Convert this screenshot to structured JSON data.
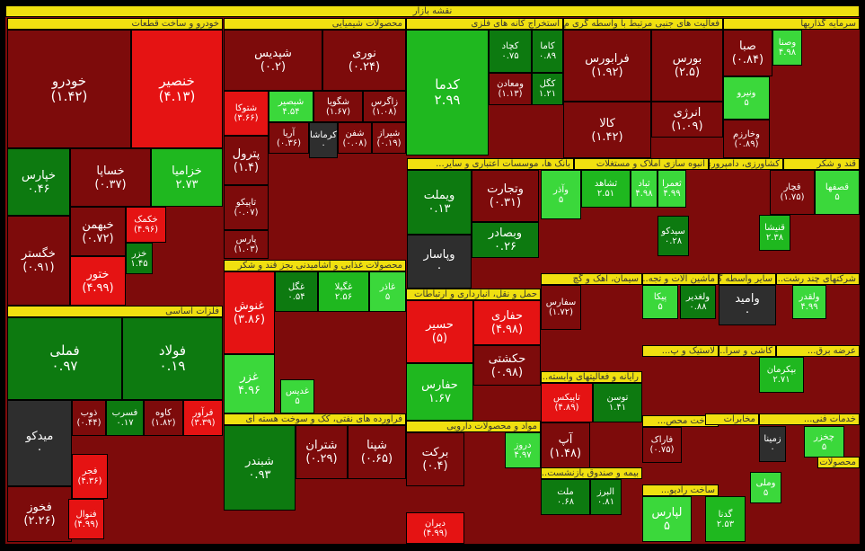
{
  "title": "نقشه بازار",
  "colors": {
    "dark_red": "#7d0b0b",
    "red": "#e51313",
    "dark_green": "#0d7a10",
    "green": "#1fb81f",
    "bright_green": "#3bd83b",
    "gray": "#2e2e2e",
    "header": "#f0e010"
  },
  "chart_data": {
    "type": "treemap",
    "sectors": [
      "خودرو و ساخت قطعات",
      "محصولات شیمیایی",
      "استخراج کانه های فلزی",
      "فعالیت های جنبی مرتبط با واسطه گری م...",
      "سرمایه گذاریها",
      "انبوه سازی املاک و مستغلات",
      "بانک ها، موسسات اعتباری و سایر...",
      "کشاورزی، دامپروری و خ...",
      "قند و شکر",
      "فلزات اساسی",
      "محصولات غذایی و آشامیدنی بجز قند و شکر",
      "حمل و نقل، انبارداری و ارتباطات",
      "سیمان، آهک و گچ",
      "ماشین آلات و تجه...",
      "سایر واسطه گر...",
      "شرکتهای چند رشت...",
      "لاستیک و پ...",
      "کاشی و سرا...",
      "عرضه برق...",
      "رایانه و فعالیتهای وابسته...",
      "فرآورده های نفتی، کک و سوخت هسته ای",
      "مواد و محصولات دارویی",
      "ساخت محص...",
      "مخابرات",
      "خدمات فنی...",
      "محصولات...",
      "بیمه و صندوق بازنشست...",
      "ساخت رادیو..."
    ],
    "tiles": [
      {
        "name": "خودرو",
        "value": "(۱.۴۲)",
        "change": -1.42
      },
      {
        "name": "خنصیر",
        "value": "(۴.۱۳)",
        "change": -4.13
      },
      {
        "name": "خپارس",
        "value": "۰.۴۶",
        "change": 0.46
      },
      {
        "name": "خساپا",
        "value": "(۰.۳۷)",
        "change": -0.37
      },
      {
        "name": "خزامیا",
        "value": "۲.۷۳",
        "change": 2.73
      },
      {
        "name": "خبهمن",
        "value": "(۰.۷۲)",
        "change": -0.72
      },
      {
        "name": "خکمک",
        "value": "(۴.۹۶)",
        "change": -4.96
      },
      {
        "name": "خگستر",
        "value": "(۰.۹۱)",
        "change": -0.91
      },
      {
        "name": "ختور",
        "value": "(۴.۹۹)",
        "change": -4.99
      },
      {
        "name": "خزر",
        "value": "۱.۴۵",
        "change": 1.45
      },
      {
        "name": "شپدیس",
        "value": "(۰.۲)",
        "change": -0.2
      },
      {
        "name": "نوری",
        "value": "(۰.۲۴)",
        "change": -0.24
      },
      {
        "name": "شتوکا",
        "value": "(۳.۶۶)",
        "change": -3.66
      },
      {
        "name": "شبصیر",
        "value": "۴.۵۴",
        "change": 4.54
      },
      {
        "name": "شگویا",
        "value": "(۱.۶۷)",
        "change": -1.67
      },
      {
        "name": "زاگرس",
        "value": "(۱.۰۸)",
        "change": -1.08
      },
      {
        "name": "آریا",
        "value": "(۰.۳۶)",
        "change": -0.36
      },
      {
        "name": "کرماشا",
        "value": "۰",
        "change": 0
      },
      {
        "name": "شفن",
        "value": "(۰.۰۸)",
        "change": -0.08
      },
      {
        "name": "شیراز",
        "value": "(۰.۱۹)",
        "change": -0.19
      },
      {
        "name": "پترول",
        "value": "(۱.۴)",
        "change": -1.4
      },
      {
        "name": "تاپیکو",
        "value": "(۰.۰۷)",
        "change": -0.07
      },
      {
        "name": "پارس",
        "value": "(۱.۰۳)",
        "change": -1.03
      },
      {
        "name": "کدما",
        "value": "۲.۹۹",
        "change": 2.99
      },
      {
        "name": "کچاد",
        "value": "۰.۷۵",
        "change": 0.75
      },
      {
        "name": "کاما",
        "value": "۰.۸۹",
        "change": 0.89
      },
      {
        "name": "ومعادن",
        "value": "(۱.۱۳)",
        "change": -1.13
      },
      {
        "name": "کگل",
        "value": "۱.۲۱",
        "change": 1.21
      },
      {
        "name": "فرابورس",
        "value": "(۱.۹۲)",
        "change": -1.92
      },
      {
        "name": "بورس",
        "value": "(۲.۵)",
        "change": -2.5
      },
      {
        "name": "کالا",
        "value": "(۱.۴۲)",
        "change": -1.42
      },
      {
        "name": "انرژی",
        "value": "(۱.۰۹)",
        "change": -1.09
      },
      {
        "name": "صبا",
        "value": "(۰.۸۴)",
        "change": -0.84
      },
      {
        "name": "وصنا",
        "value": "۴.۹۸",
        "change": 4.98
      },
      {
        "name": "ونیرو",
        "value": "۵",
        "change": 5
      },
      {
        "name": "وخارزم",
        "value": "(۰.۸۹)",
        "change": -0.89
      },
      {
        "name": "ویملت",
        "value": "۰.۱۳",
        "change": 0.13
      },
      {
        "name": "وتجارت",
        "value": "(۰.۳۱)",
        "change": -0.31
      },
      {
        "name": "وبصادر",
        "value": "۰.۲۶",
        "change": 0.26
      },
      {
        "name": "وپاسار",
        "value": "۰",
        "change": 0
      },
      {
        "name": "وآذر",
        "value": "۵",
        "change": 5
      },
      {
        "name": "ثشاهد",
        "value": "۲.۵۱",
        "change": 2.51
      },
      {
        "name": "ثباد",
        "value": "۴.۹۸",
        "change": 4.98
      },
      {
        "name": "ثعمرا",
        "value": "۴.۹۹",
        "change": 4.99
      },
      {
        "name": "سیدکو",
        "value": "۰.۲۸",
        "change": 0.28
      },
      {
        "name": "قچار",
        "value": "(۱.۷۵)",
        "change": -1.75
      },
      {
        "name": "قصفها",
        "value": "۵",
        "change": 5
      },
      {
        "name": "قنیشا",
        "value": "۲.۳۸",
        "change": 2.38
      },
      {
        "name": "فملی",
        "value": "۰.۹۷",
        "change": 0.97
      },
      {
        "name": "فولاد",
        "value": "۰.۱۹",
        "change": 0.19
      },
      {
        "name": "میدکو",
        "value": "۰",
        "change": 0
      },
      {
        "name": "ذوب",
        "value": "(۰.۴۴)",
        "change": -0.44
      },
      {
        "name": "فسرب",
        "value": "۰.۱۷",
        "change": 0.17
      },
      {
        "name": "کاوه",
        "value": "(۱.۸۲)",
        "change": -1.82
      },
      {
        "name": "فرآور",
        "value": "(۳.۳۹)",
        "change": -3.39
      },
      {
        "name": "فجر",
        "value": "(۴.۳۶)",
        "change": -4.36
      },
      {
        "name": "فخوز",
        "value": "(۲.۲۶)",
        "change": -2.26
      },
      {
        "name": "فنوال",
        "value": "(۴.۹۹)",
        "change": -4.99
      },
      {
        "name": "غنوش",
        "value": "(۳.۸۶)",
        "change": -3.86
      },
      {
        "name": "غگل",
        "value": "۰.۵۴",
        "change": 0.54
      },
      {
        "name": "غگیلا",
        "value": "۲.۵۶",
        "change": 2.56
      },
      {
        "name": "غاذر",
        "value": "۵",
        "change": 5
      },
      {
        "name": "غزر",
        "value": "۴.۹۶",
        "change": 4.96
      },
      {
        "name": "غدیس",
        "value": "۵",
        "change": 5
      },
      {
        "name": "حسیر",
        "value": "(۵)",
        "change": -5
      },
      {
        "name": "حفارس",
        "value": "۱.۶۷",
        "change": 1.67
      },
      {
        "name": "حفاری",
        "value": "(۴.۹۸)",
        "change": -4.98
      },
      {
        "name": "حکشتی",
        "value": "(۰.۹۸)",
        "change": -0.98
      },
      {
        "name": "سفارس",
        "value": "(۱.۷۲)",
        "change": -1.72
      },
      {
        "name": "تاپیکس",
        "value": "(۴.۸۹)",
        "change": -4.89
      },
      {
        "name": "توسن",
        "value": "۱.۴۱",
        "change": 1.41
      },
      {
        "name": "شبندر",
        "value": "۰.۹۳",
        "change": 0.93
      },
      {
        "name": "شتران",
        "value": "(۰.۲۹)",
        "change": -0.29
      },
      {
        "name": "شپنا",
        "value": "(۰.۶۵)",
        "change": -0.65
      },
      {
        "name": "برکت",
        "value": "(۰.۴)",
        "change": -0.4
      },
      {
        "name": "دروز",
        "value": "۴.۹۷",
        "change": 4.97
      },
      {
        "name": "آپ",
        "value": "(۱.۴۸)",
        "change": -1.48
      },
      {
        "name": "دیران",
        "value": "(۴.۹۹)",
        "change": -4.99
      },
      {
        "name": "فاراک",
        "value": "(۰.۷۵)",
        "change": -0.75
      },
      {
        "name": "ملت",
        "value": "۰.۶۸",
        "change": 0.68
      },
      {
        "name": "البرز",
        "value": "۰.۸۱",
        "change": 0.81
      },
      {
        "name": "پیکا",
        "value": "۵",
        "change": 5
      },
      {
        "name": "وامید",
        "value": "۰",
        "change": 0
      },
      {
        "name": "ولغدیر",
        "value": "۰.۸۸",
        "change": 0.88
      },
      {
        "name": "ولقدر",
        "value": "۴.۹۹",
        "change": 4.99
      },
      {
        "name": "بپکرمان",
        "value": "۲.۷۱",
        "change": 2.71
      },
      {
        "name": "زمینا",
        "value": "۰",
        "change": 0
      },
      {
        "name": "چخزر",
        "value": "۵",
        "change": 5
      },
      {
        "name": "لپارس",
        "value": "۵",
        "change": 5
      },
      {
        "name": "گدنا",
        "value": "۲.۵۳",
        "change": 2.53
      },
      {
        "name": "وملی",
        "value": "۵",
        "change": 5
      }
    ]
  },
  "headers": [
    {
      "label": "نقشه بازار"
    },
    {
      "label": "خودرو و ساخت قطعات"
    },
    {
      "label": "محصولات شیمیایی"
    },
    {
      "label": "استخراج کانه های فلزی"
    },
    {
      "label": "فعالیت های جنبی مرتبط با واسطه گری م..."
    },
    {
      "label": "سرمایه گذاریها"
    },
    {
      "label": "بانک ها، موسسات اعتباری و سایر..."
    },
    {
      "label": "انبوه سازی املاک و مستغلات"
    },
    {
      "label": "کشاورزی، دامپروری و خ..."
    },
    {
      "label": "قند و شکر"
    },
    {
      "label": "فلزات اساسی"
    },
    {
      "label": "محصولات غذایی و آشامیدنی بجز قند و شکر"
    },
    {
      "label": "حمل و نقل، انبارداری و ارتباطات"
    },
    {
      "label": "سیمان، آهک و گچ"
    },
    {
      "label": "ماشین آلات و تجه..."
    },
    {
      "label": "سایر واسطه گر..."
    },
    {
      "label": "شرکتهای چند رشت..."
    },
    {
      "label": "لاستیک و پ..."
    },
    {
      "label": "کاشی و سرا..."
    },
    {
      "label": "عرضه برق..."
    },
    {
      "label": "رایانه و فعالیتهای وابسته..."
    },
    {
      "label": "فرآورده های نفتی، کک و سوخت هسته ای"
    },
    {
      "label": "مواد و محصولات دارویی"
    },
    {
      "label": "ساخت محص..."
    },
    {
      "label": "مخابرات"
    },
    {
      "label": "خدمات فنی..."
    },
    {
      "label": "محصولات..."
    },
    {
      "label": "بیمه و صندوق بازنشست..."
    },
    {
      "label": "ساخت رادیو..."
    }
  ]
}
